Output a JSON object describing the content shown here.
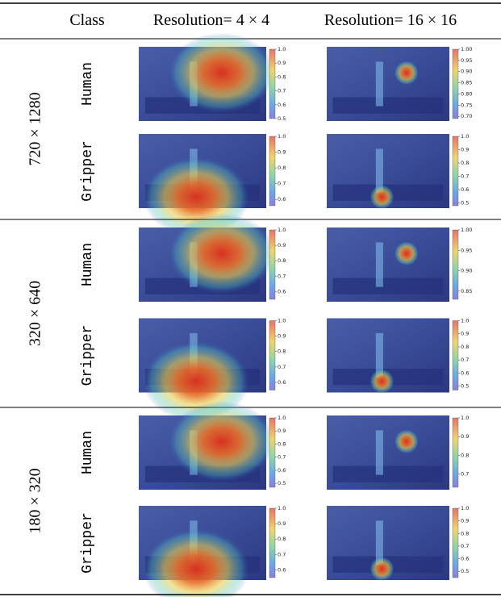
{
  "header": [
    "Class",
    "Resolution= 4 × 4",
    "Resolution= 16 × 16"
  ],
  "rows": [
    {
      "resolution": "720 × 1280",
      "classes": [
        "Human",
        "Gripper"
      ],
      "colorbars": [
        [
          {
            "range": [
              0.5,
              1.0
            ],
            "ticks": [
              {
                "value": 1,
                "label": "1.0"
              },
              0.9,
              0.8,
              0.7,
              0.6,
              0.5
            ]
          },
          {
            "range": [
              0.69,
              1.0
            ],
            "ticks": [
              {
                "value": 1,
                "label": "1.00"
              },
              0.95,
              {
                "value": 0.9,
                "label": "0.90"
              },
              0.85,
              {
                "value": 0.8,
                "label": "0.80"
              },
              0.75,
              {
                "value": 0.7,
                "label": "0.70"
              }
            ]
          }
        ],
        [
          {
            "range": [
              0.56,
              1.0
            ],
            "ticks": [
              {
                "value": 1,
                "label": "1.0"
              },
              0.9,
              0.8,
              0.7,
              0.6
            ]
          },
          {
            "range": [
              0.48,
              1.0
            ],
            "ticks": [
              {
                "value": 1,
                "label": "1.0"
              },
              0.9,
              0.8,
              0.7,
              0.6,
              0.5
            ]
          }
        ]
      ]
    },
    {
      "resolution": "320 × 640",
      "classes": [
        "Human",
        "Gripper"
      ],
      "colorbars": [
        [
          {
            "range": [
              0.55,
              1.0
            ],
            "ticks": [
              {
                "value": 1,
                "label": "1.0"
              },
              0.9,
              0.8,
              0.7,
              0.6
            ]
          },
          {
            "range": [
              0.83,
              1.0
            ],
            "ticks": [
              {
                "value": 1,
                "label": "1.00"
              },
              0.95,
              {
                "value": 0.9,
                "label": "0.90"
              },
              0.85
            ]
          }
        ],
        [
          {
            "range": [
              0.55,
              1.0
            ],
            "ticks": [
              {
                "value": 1,
                "label": "1.0"
              },
              0.9,
              0.8,
              0.7,
              0.6
            ]
          },
          {
            "range": [
              0.47,
              1.0
            ],
            "ticks": [
              {
                "value": 1,
                "label": "1.0"
              },
              0.9,
              0.8,
              0.7,
              0.6,
              0.5
            ]
          }
        ]
      ]
    },
    {
      "resolution": "180 × 320",
      "classes": [
        "Human",
        "Gripper"
      ],
      "colorbars": [
        [
          {
            "range": [
              0.47,
              1.0
            ],
            "ticks": [
              {
                "value": 1,
                "label": "1.0"
              },
              0.9,
              0.8,
              0.7,
              0.6,
              0.5
            ]
          },
          {
            "range": [
              0.63,
              1.0
            ],
            "ticks": [
              {
                "value": 1,
                "label": "1.0"
              },
              0.9,
              0.8,
              0.7
            ]
          }
        ],
        [
          {
            "range": [
              0.55,
              1.0
            ],
            "ticks": [
              {
                "value": 1,
                "label": "1.0"
              },
              0.9,
              0.8,
              0.7,
              0.6
            ]
          },
          {
            "range": [
              0.45,
              1.0
            ],
            "ticks": [
              {
                "value": 1,
                "label": "1.0"
              },
              0.9,
              0.8,
              0.7,
              0.6,
              0.5
            ]
          }
        ]
      ]
    }
  ]
}
